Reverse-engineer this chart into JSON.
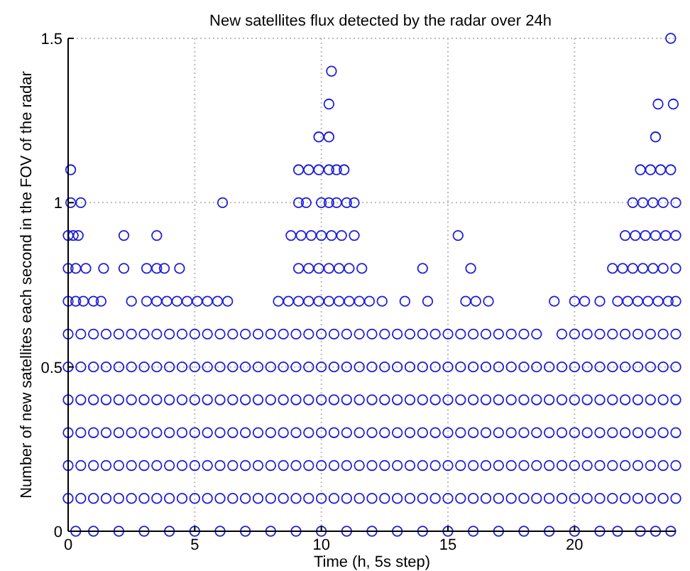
{
  "chart_data": {
    "type": "scatter",
    "title": "New satellites flux detected by the radar over 24h",
    "xlabel": "Time (h, 5s step)",
    "ylabel": "Number of new satellites each second in the FOV of the radar",
    "xlim": [
      0,
      24
    ],
    "ylim": [
      0,
      1.5
    ],
    "xticks": [
      0,
      5,
      10,
      15,
      20
    ],
    "yticks": [
      0,
      0.5,
      1,
      1.5
    ],
    "grid": true,
    "marker": "circle",
    "series": [
      {
        "color": "#1f1fd6",
        "x": [
          0.3,
          1,
          2,
          3,
          4,
          5,
          6,
          7,
          8,
          9,
          10,
          11,
          12,
          13,
          14,
          15,
          16,
          17,
          18,
          19,
          20,
          21,
          21.7,
          22.6,
          23.2,
          23.8
        ],
        "values": [
          0,
          0,
          0,
          0,
          0,
          0,
          0,
          0,
          0,
          0,
          0,
          0,
          0,
          0,
          0,
          0,
          0,
          0,
          0,
          0,
          0,
          0,
          0,
          0,
          0,
          0
        ]
      },
      {
        "color": "#1f1fd6",
        "x": [
          0,
          0.5,
          1,
          1.5,
          2,
          2.5,
          3,
          3.5,
          4,
          4.5,
          5,
          5.5,
          6,
          6.5,
          7,
          7.5,
          8,
          8.5,
          9,
          9.5,
          10,
          10.5,
          11,
          11.5,
          12,
          12.5,
          13,
          13.5,
          14,
          14.5,
          15,
          15.5,
          16,
          16.5,
          17,
          17.5,
          18,
          18.5,
          19,
          19.5,
          20,
          20.5,
          21,
          21.5,
          22,
          22.5,
          23,
          23.5,
          24
        ],
        "values": [
          0.1,
          0.1,
          0.1,
          0.1,
          0.1,
          0.1,
          0.1,
          0.1,
          0.1,
          0.1,
          0.1,
          0.1,
          0.1,
          0.1,
          0.1,
          0.1,
          0.1,
          0.1,
          0.1,
          0.1,
          0.1,
          0.1,
          0.1,
          0.1,
          0.1,
          0.1,
          0.1,
          0.1,
          0.1,
          0.1,
          0.1,
          0.1,
          0.1,
          0.1,
          0.1,
          0.1,
          0.1,
          0.1,
          0.1,
          0.1,
          0.1,
          0.1,
          0.1,
          0.1,
          0.1,
          0.1,
          0.1,
          0.1,
          0.1
        ]
      },
      {
        "color": "#1f1fd6",
        "x": [
          0,
          0.5,
          1,
          1.5,
          2,
          2.5,
          3,
          3.5,
          4,
          4.5,
          5,
          5.5,
          6,
          6.5,
          7,
          7.5,
          8,
          8.5,
          9,
          9.5,
          10,
          10.5,
          11,
          11.5,
          12,
          12.5,
          13,
          13.5,
          14,
          14.5,
          15,
          15.5,
          16,
          16.5,
          17,
          17.5,
          18,
          18.5,
          19,
          19.5,
          20,
          20.5,
          21,
          21.5,
          22,
          22.5,
          23,
          23.5,
          24
        ],
        "values": [
          0.2,
          0.2,
          0.2,
          0.2,
          0.2,
          0.2,
          0.2,
          0.2,
          0.2,
          0.2,
          0.2,
          0.2,
          0.2,
          0.2,
          0.2,
          0.2,
          0.2,
          0.2,
          0.2,
          0.2,
          0.2,
          0.2,
          0.2,
          0.2,
          0.2,
          0.2,
          0.2,
          0.2,
          0.2,
          0.2,
          0.2,
          0.2,
          0.2,
          0.2,
          0.2,
          0.2,
          0.2,
          0.2,
          0.2,
          0.2,
          0.2,
          0.2,
          0.2,
          0.2,
          0.2,
          0.2,
          0.2,
          0.2,
          0.2
        ]
      },
      {
        "color": "#1f1fd6",
        "x": [
          0,
          0.5,
          1,
          1.5,
          2,
          2.5,
          3,
          3.5,
          4,
          4.5,
          5,
          5.5,
          6,
          6.5,
          7,
          7.5,
          8,
          8.5,
          9,
          9.5,
          10,
          10.5,
          11,
          11.5,
          12,
          12.5,
          13,
          13.5,
          14,
          14.5,
          15,
          15.5,
          16,
          16.5,
          17,
          17.5,
          18,
          18.5,
          19,
          19.5,
          20,
          20.5,
          21,
          21.5,
          22,
          22.5,
          23,
          23.5,
          24
        ],
        "values": [
          0.3,
          0.3,
          0.3,
          0.3,
          0.3,
          0.3,
          0.3,
          0.3,
          0.3,
          0.3,
          0.3,
          0.3,
          0.3,
          0.3,
          0.3,
          0.3,
          0.3,
          0.3,
          0.3,
          0.3,
          0.3,
          0.3,
          0.3,
          0.3,
          0.3,
          0.3,
          0.3,
          0.3,
          0.3,
          0.3,
          0.3,
          0.3,
          0.3,
          0.3,
          0.3,
          0.3,
          0.3,
          0.3,
          0.3,
          0.3,
          0.3,
          0.3,
          0.3,
          0.3,
          0.3,
          0.3,
          0.3,
          0.3,
          0.3
        ]
      },
      {
        "color": "#1f1fd6",
        "x": [
          0,
          0.5,
          1,
          1.5,
          2,
          2.5,
          3,
          3.5,
          4,
          4.5,
          5,
          5.5,
          6,
          6.5,
          7,
          7.5,
          8,
          8.5,
          9,
          9.5,
          10,
          10.5,
          11,
          11.5,
          12,
          12.5,
          13,
          13.5,
          14,
          14.5,
          15,
          15.5,
          16,
          16.5,
          17,
          17.5,
          18,
          18.5,
          19,
          19.5,
          20,
          20.5,
          21,
          21.5,
          22,
          22.5,
          23,
          23.5,
          24
        ],
        "values": [
          0.4,
          0.4,
          0.4,
          0.4,
          0.4,
          0.4,
          0.4,
          0.4,
          0.4,
          0.4,
          0.4,
          0.4,
          0.4,
          0.4,
          0.4,
          0.4,
          0.4,
          0.4,
          0.4,
          0.4,
          0.4,
          0.4,
          0.4,
          0.4,
          0.4,
          0.4,
          0.4,
          0.4,
          0.4,
          0.4,
          0.4,
          0.4,
          0.4,
          0.4,
          0.4,
          0.4,
          0.4,
          0.4,
          0.4,
          0.4,
          0.4,
          0.4,
          0.4,
          0.4,
          0.4,
          0.4,
          0.4,
          0.4,
          0.4
        ]
      },
      {
        "color": "#1f1fd6",
        "x": [
          0,
          0.5,
          1,
          1.5,
          2,
          2.5,
          3,
          3.5,
          4,
          4.5,
          5,
          5.5,
          6,
          6.5,
          7,
          7.5,
          8,
          8.5,
          9,
          9.5,
          10,
          10.5,
          11,
          11.5,
          12,
          12.5,
          13,
          13.5,
          14,
          14.5,
          15,
          15.5,
          16,
          16.5,
          17,
          17.5,
          18,
          18.5,
          19,
          19.5,
          20,
          20.5,
          21,
          21.5,
          22,
          22.5,
          23,
          23.5,
          24
        ],
        "values": [
          0.5,
          0.5,
          0.5,
          0.5,
          0.5,
          0.5,
          0.5,
          0.5,
          0.5,
          0.5,
          0.5,
          0.5,
          0.5,
          0.5,
          0.5,
          0.5,
          0.5,
          0.5,
          0.5,
          0.5,
          0.5,
          0.5,
          0.5,
          0.5,
          0.5,
          0.5,
          0.5,
          0.5,
          0.5,
          0.5,
          0.5,
          0.5,
          0.5,
          0.5,
          0.5,
          0.5,
          0.5,
          0.5,
          0.5,
          0.5,
          0.5,
          0.5,
          0.5,
          0.5,
          0.5,
          0.5,
          0.5,
          0.5,
          0.5
        ]
      },
      {
        "color": "#1f1fd6",
        "x": [
          0,
          0.5,
          1,
          1.5,
          2,
          2.5,
          3,
          3.5,
          4,
          4.5,
          5,
          5.5,
          6,
          6.5,
          7,
          7.5,
          8,
          8.5,
          9,
          9.5,
          10,
          10.5,
          11,
          11.5,
          12,
          12.5,
          13,
          13.5,
          14,
          14.5,
          15,
          15.5,
          16,
          16.5,
          17,
          17.5,
          18,
          18.5,
          19.5,
          20,
          20.5,
          21,
          21.5,
          22,
          22.5,
          23,
          23.5,
          24
        ],
        "values": [
          0.6,
          0.6,
          0.6,
          0.6,
          0.6,
          0.6,
          0.6,
          0.6,
          0.6,
          0.6,
          0.6,
          0.6,
          0.6,
          0.6,
          0.6,
          0.6,
          0.6,
          0.6,
          0.6,
          0.6,
          0.6,
          0.6,
          0.6,
          0.6,
          0.6,
          0.6,
          0.6,
          0.6,
          0.6,
          0.6,
          0.6,
          0.6,
          0.6,
          0.6,
          0.6,
          0.6,
          0.6,
          0.6,
          0.6,
          0.6,
          0.6,
          0.6,
          0.6,
          0.6,
          0.6,
          0.6,
          0.6,
          0.6
        ]
      },
      {
        "color": "#1f1fd6",
        "x": [
          0,
          0.3,
          0.6,
          1,
          1.3,
          2.5,
          3.1,
          3.5,
          3.9,
          4.3,
          4.7,
          5.1,
          5.5,
          5.9,
          6.3,
          8.3,
          8.7,
          9.1,
          9.5,
          9.9,
          10.3,
          10.7,
          11.1,
          11.5,
          11.9,
          12.4,
          13.3,
          14.2,
          15.7,
          16.1,
          16.6,
          19.2,
          20,
          20.4,
          21,
          21.7,
          22.1,
          22.5,
          22.9,
          23.3,
          23.7,
          24
        ],
        "values": [
          0.7,
          0.7,
          0.7,
          0.7,
          0.7,
          0.7,
          0.7,
          0.7,
          0.7,
          0.7,
          0.7,
          0.7,
          0.7,
          0.7,
          0.7,
          0.7,
          0.7,
          0.7,
          0.7,
          0.7,
          0.7,
          0.7,
          0.7,
          0.7,
          0.7,
          0.7,
          0.7,
          0.7,
          0.7,
          0.7,
          0.7,
          0.7,
          0.7,
          0.7,
          0.7,
          0.7,
          0.7,
          0.7,
          0.7,
          0.7,
          0.7,
          0.7
        ]
      },
      {
        "color": "#1f1fd6",
        "x": [
          0,
          0.3,
          0.7,
          1.4,
          2.2,
          3.1,
          3.5,
          3.8,
          4.4,
          9.1,
          9.5,
          9.9,
          10.3,
          10.7,
          11.1,
          11.6,
          14,
          15.9,
          21.5,
          21.9,
          22.3,
          22.7,
          23.1,
          23.5,
          24
        ],
        "values": [
          0.8,
          0.8,
          0.8,
          0.8,
          0.8,
          0.8,
          0.8,
          0.8,
          0.8,
          0.8,
          0.8,
          0.8,
          0.8,
          0.8,
          0.8,
          0.8,
          0.8,
          0.8,
          0.8,
          0.8,
          0.8,
          0.8,
          0.8,
          0.8,
          0.8
        ]
      },
      {
        "color": "#1f1fd6",
        "x": [
          0,
          0.2,
          0.4,
          2.2,
          3.5,
          8.8,
          9.2,
          9.6,
          10,
          10.4,
          10.8,
          11.3,
          15.4,
          22,
          22.4,
          22.8,
          23.2,
          23.6,
          24
        ],
        "values": [
          0.9,
          0.9,
          0.9,
          0.9,
          0.9,
          0.9,
          0.9,
          0.9,
          0.9,
          0.9,
          0.9,
          0.9,
          0.9,
          0.9,
          0.9,
          0.9,
          0.9,
          0.9,
          0.9
        ]
      },
      {
        "color": "#1f1fd6",
        "x": [
          0.1,
          0.5,
          6.1,
          9.1,
          9.4,
          10,
          10.3,
          10.6,
          11,
          11.3,
          22.3,
          22.7,
          23.1,
          23.5,
          24
        ],
        "values": [
          1,
          1,
          1,
          1,
          1,
          1,
          1,
          1,
          1,
          1,
          1,
          1,
          1,
          1,
          1
        ]
      },
      {
        "color": "#1f1fd6",
        "x": [
          0.1,
          9.1,
          9.5,
          9.9,
          10.3,
          10.6,
          10.9,
          22.6,
          23,
          23.4,
          23.8
        ],
        "values": [
          1.1,
          1.1,
          1.1,
          1.1,
          1.1,
          1.1,
          1.1,
          1.1,
          1.1,
          1.1,
          1.1
        ]
      },
      {
        "color": "#1f1fd6",
        "x": [
          9.9,
          10.3,
          23.2,
          10.3,
          23.3,
          23.9,
          10.4,
          23.8
        ],
        "values": [
          1.2,
          1.2,
          1.2,
          1.3,
          1.3,
          1.3,
          1.4,
          1.5
        ]
      }
    ]
  }
}
